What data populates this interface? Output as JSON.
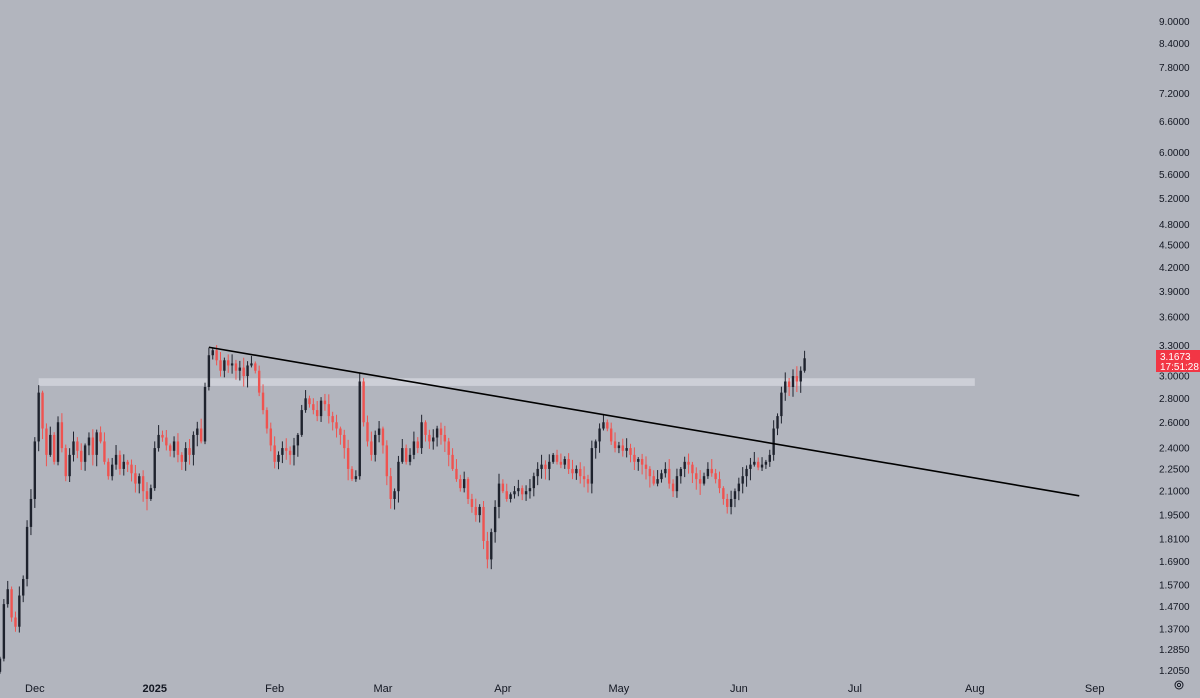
{
  "chart_data": {
    "type": "candlestick",
    "scale": "log",
    "grid": false,
    "price_axis": {
      "position": "right",
      "ticks": [
        "9.0000",
        "8.4000",
        "7.8000",
        "7.2000",
        "6.6000",
        "6.0000",
        "5.6000",
        "5.2000",
        "4.8000",
        "4.5000",
        "4.2000",
        "3.9000",
        "3.6000",
        "3.3000",
        "3.0000",
        "2.8000",
        "2.6000",
        "2.4000",
        "2.2500",
        "2.1000",
        "1.9500",
        "1.8100",
        "1.6900",
        "1.5700",
        "1.4700",
        "1.3700",
        "1.2850",
        "1.2050"
      ],
      "range": [
        1.17,
        9.5
      ]
    },
    "time_axis": {
      "start": "2024-11-22",
      "end": "2025-09-14",
      "labels": [
        {
          "text": "Dec",
          "date": "2024-12-01",
          "bold": false
        },
        {
          "text": "2025",
          "date": "2025-01-01",
          "bold": true
        },
        {
          "text": "Feb",
          "date": "2025-02-01",
          "bold": false
        },
        {
          "text": "Mar",
          "date": "2025-03-01",
          "bold": false
        },
        {
          "text": "Apr",
          "date": "2025-04-01",
          "bold": false
        },
        {
          "text": "May",
          "date": "2025-05-01",
          "bold": false
        },
        {
          "text": "Jun",
          "date": "2025-06-01",
          "bold": false
        },
        {
          "text": "Jul",
          "date": "2025-07-01",
          "bold": false
        },
        {
          "text": "Aug",
          "date": "2025-08-01",
          "bold": false
        },
        {
          "text": "Sep",
          "date": "2025-09-01",
          "bold": false
        }
      ]
    },
    "candles": {
      "first_date": "2024-11-22",
      "interval": "1D",
      "closes": [
        1.25,
        1.48,
        1.55,
        1.42,
        1.38,
        1.52,
        1.6,
        1.88,
        2.05,
        2.45,
        2.85,
        2.55,
        2.35,
        2.5,
        2.3,
        2.6,
        2.4,
        2.2,
        2.35,
        2.45,
        2.38,
        2.3,
        2.42,
        2.48,
        2.35,
        2.52,
        2.45,
        2.3,
        2.2,
        2.28,
        2.35,
        2.25,
        2.3,
        2.28,
        2.22,
        2.15,
        2.2,
        2.1,
        2.05,
        2.12,
        2.4,
        2.5,
        2.48,
        2.42,
        2.38,
        2.45,
        2.35,
        2.3,
        2.4,
        2.35,
        2.5,
        2.55,
        2.45,
        2.9,
        3.2,
        3.25,
        3.15,
        3.05,
        3.15,
        3.1,
        3.12,
        3.05,
        3.08,
        3.0,
        3.1,
        3.12,
        3.05,
        2.85,
        2.7,
        2.55,
        2.42,
        2.3,
        2.35,
        2.4,
        2.38,
        2.35,
        2.42,
        2.5,
        2.7,
        2.8,
        2.75,
        2.7,
        2.65,
        2.78,
        2.75,
        2.65,
        2.6,
        2.55,
        2.5,
        2.4,
        2.25,
        2.18,
        2.2,
        2.95,
        2.6,
        2.45,
        2.35,
        2.5,
        2.55,
        2.42,
        2.2,
        2.05,
        2.1,
        2.3,
        2.4,
        2.3,
        2.35,
        2.45,
        2.4,
        2.6,
        2.5,
        2.45,
        2.48,
        2.55,
        2.5,
        2.45,
        2.35,
        2.25,
        2.18,
        2.12,
        2.18,
        2.05,
        2.0,
        1.95,
        2.0,
        1.8,
        1.7,
        1.85,
        2.0,
        2.15,
        2.1,
        2.05,
        2.08,
        2.1,
        2.12,
        2.08,
        2.1,
        2.12,
        2.2,
        2.25,
        2.28,
        2.25,
        2.3,
        2.35,
        2.3,
        2.28,
        2.32,
        2.25,
        2.22,
        2.25,
        2.2,
        2.18,
        2.15,
        2.4,
        2.45,
        2.55,
        2.6,
        2.55,
        2.45,
        2.4,
        2.42,
        2.38,
        2.4,
        2.35,
        2.3,
        2.32,
        2.28,
        2.25,
        2.2,
        2.15,
        2.18,
        2.22,
        2.25,
        2.15,
        2.1,
        2.2,
        2.25,
        2.3,
        2.28,
        2.22,
        2.18,
        2.15,
        2.2,
        2.25,
        2.22,
        2.18,
        2.12,
        2.05,
        2.0,
        2.05,
        2.1,
        2.15,
        2.2,
        2.25,
        2.28,
        2.3,
        2.26,
        2.28,
        2.3,
        2.35,
        2.55,
        2.65,
        2.85,
        2.95,
        2.9,
        3.0,
        2.95,
        3.05,
        3.17
      ]
    },
    "last_price": {
      "value": "3.1673",
      "countdown": "17:51:28"
    },
    "trendline": {
      "from": {
        "date": "2025-01-15",
        "price": 3.28
      },
      "to": {
        "date": "2025-08-28",
        "price": 2.07
      }
    },
    "resistance_zone": {
      "from_date": "2024-12-02",
      "to_date": "2025-08-01",
      "low": 2.91,
      "high": 2.98
    }
  },
  "colors": {
    "background": "#b2b5be",
    "up": "#1e222d",
    "down": "#ef5350",
    "trendline": "#000000",
    "zone": "#d1d4dc",
    "price_tag": "#f23645"
  },
  "icons": {
    "settings": "gear-icon"
  }
}
